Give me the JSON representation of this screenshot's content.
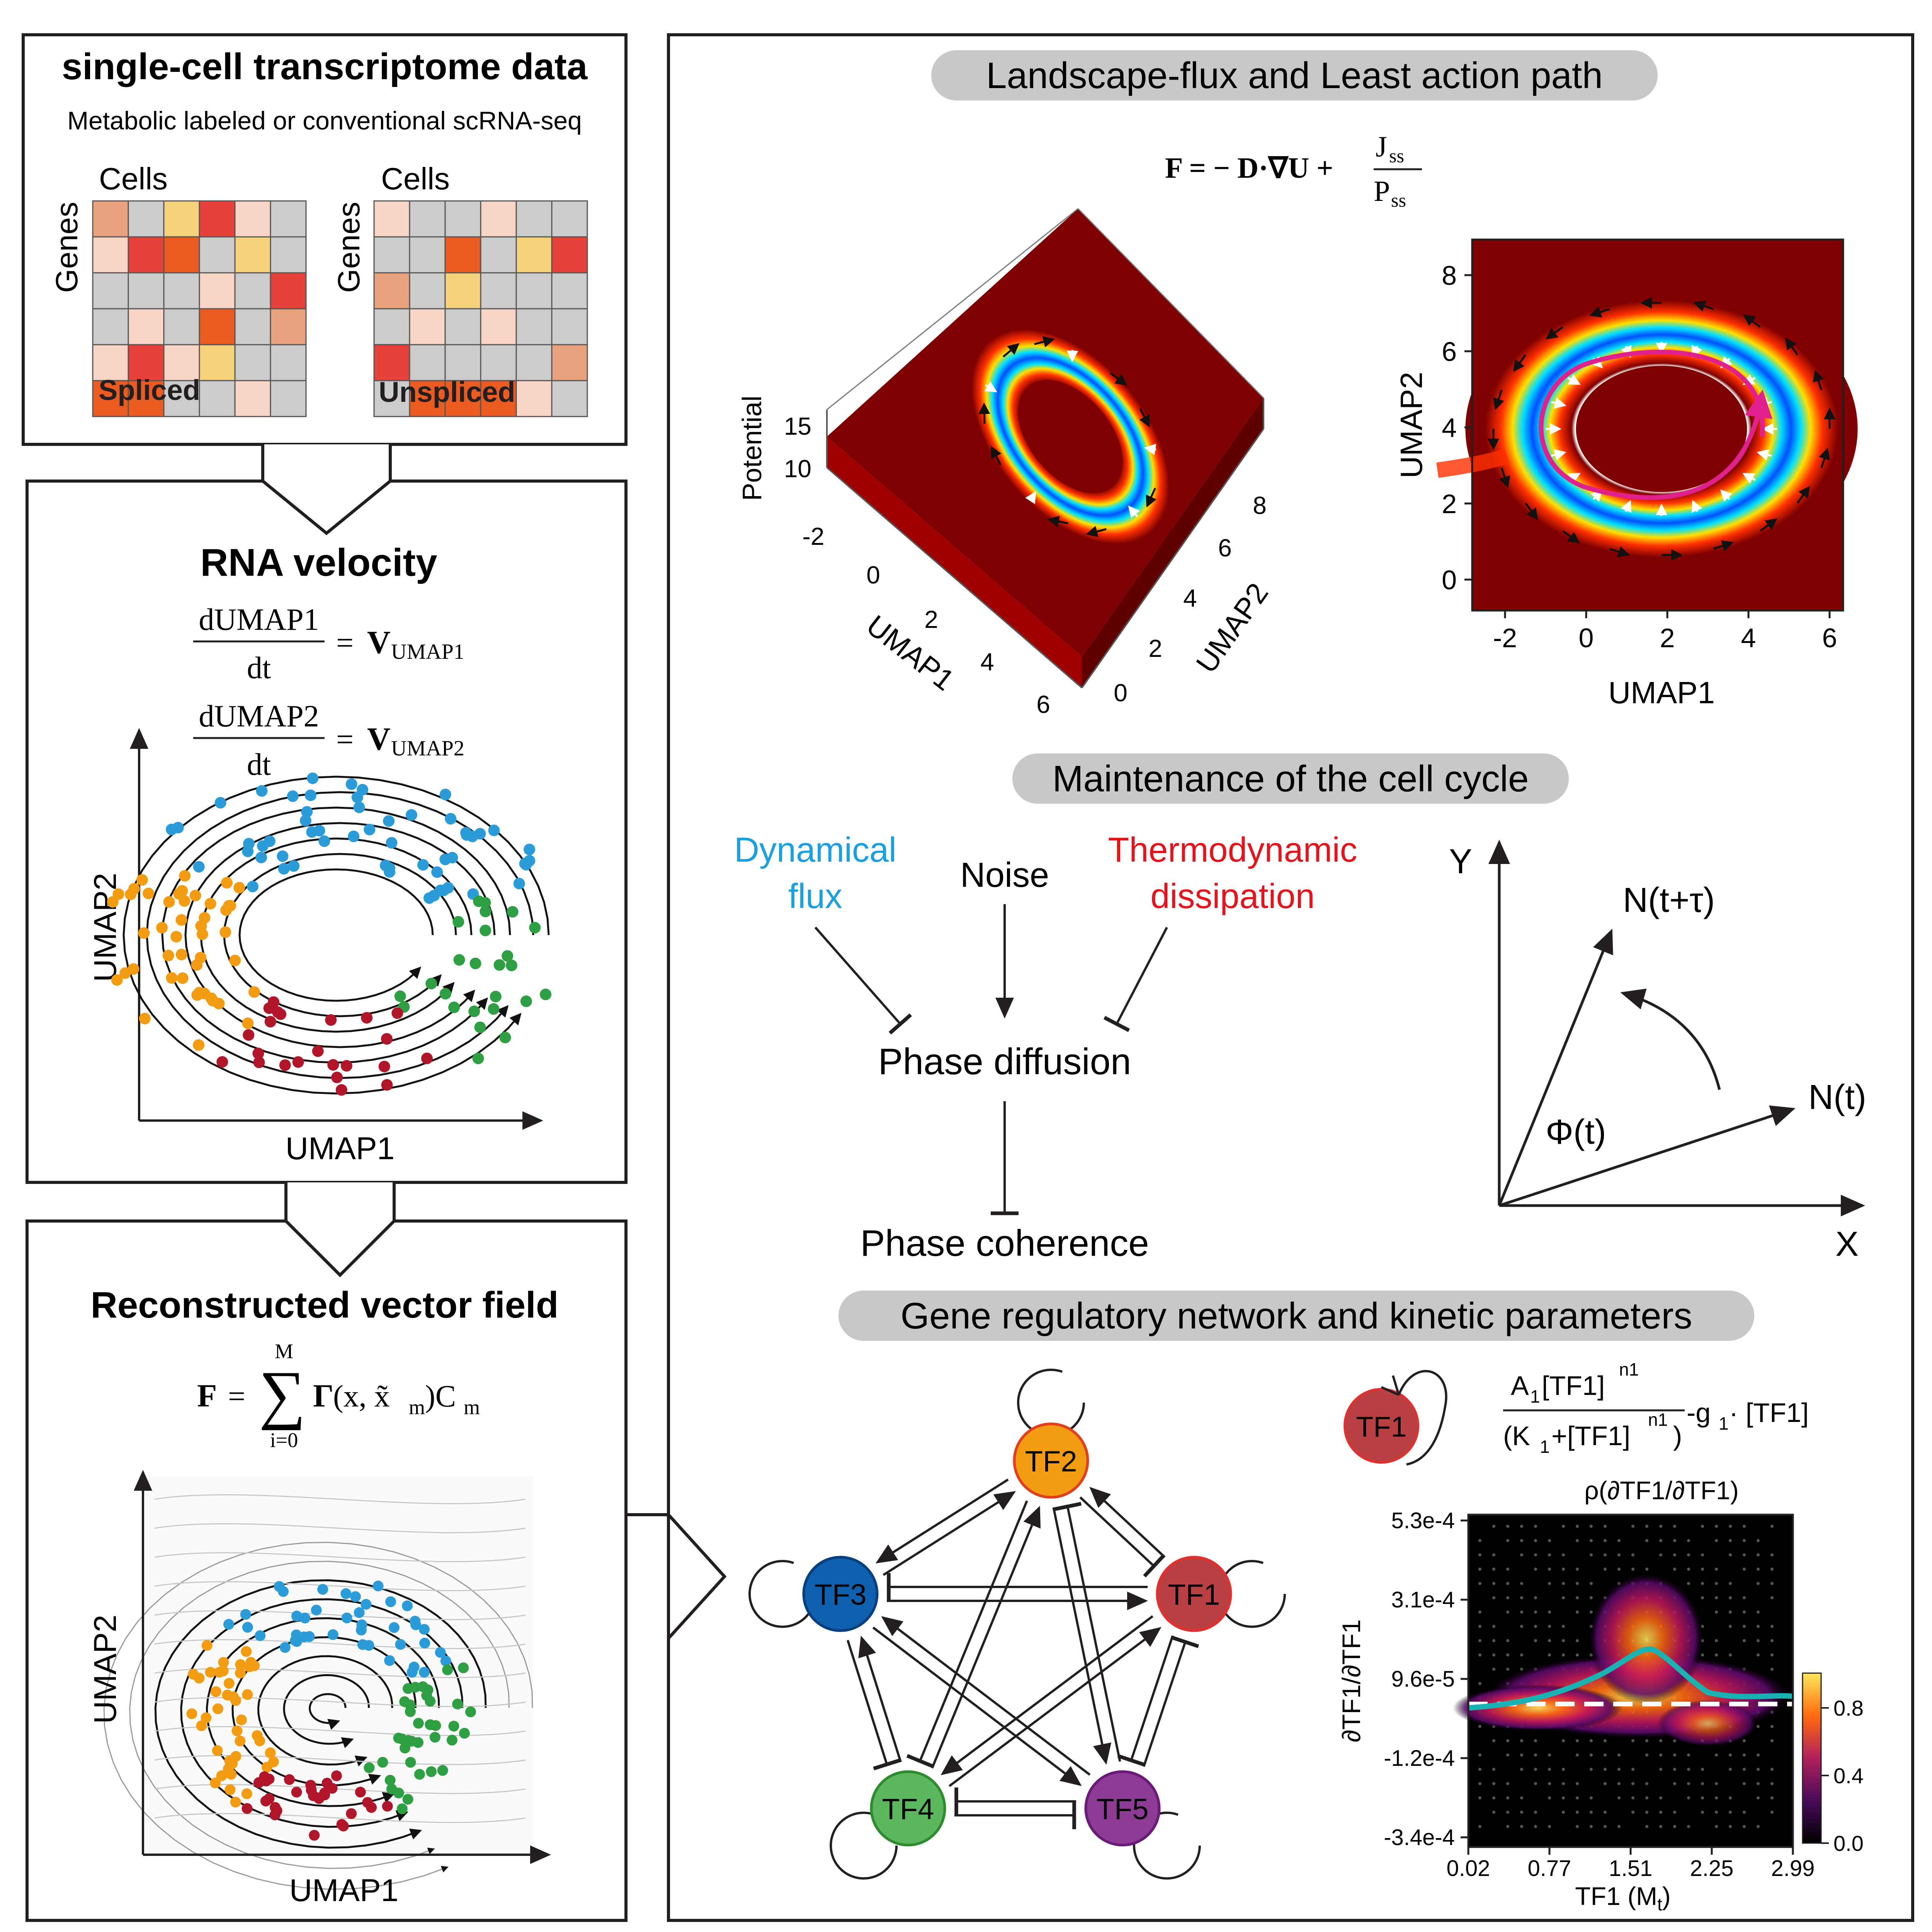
{
  "panel_data": {
    "title": "single-cell transcriptome data",
    "subtitle": "Metabolic labeled or conventional scRNA-seq",
    "axis_cells": "Cells",
    "axis_genes": "Genes",
    "spliced_label": "Spliced",
    "unspliced_label": "Unspliced",
    "spliced_grid": [
      [
        "#eaa17e",
        "#cccccc",
        "#f5d27a",
        "#e8413a",
        "#f9d5c5",
        "#cccccc"
      ],
      [
        "#f9d5c5",
        "#e8413a",
        "#ea5b22",
        "#cccccc",
        "#f5d27a",
        "#cccccc"
      ],
      [
        "#cccccc",
        "#cccccc",
        "#cccccc",
        "#f9d5c5",
        "#cccccc",
        "#e8413a"
      ],
      [
        "#cccccc",
        "#f9d5c5",
        "#cccccc",
        "#ea5b22",
        "#cccccc",
        "#eaa17e"
      ],
      [
        "#f9d5c5",
        "#e8413a",
        "#f9d5c5",
        "#f5d27a",
        "#cccccc",
        "#cccccc"
      ],
      [
        "#ea5b22",
        "#ea5b22",
        "#cccccc",
        "#cccccc",
        "#f9d5c5",
        "#cccccc"
      ]
    ],
    "unspliced_grid": [
      [
        "#f9d5c5",
        "#cccccc",
        "#cccccc",
        "#f9d5c5",
        "#cccccc",
        "#cccccc"
      ],
      [
        "#cccccc",
        "#cccccc",
        "#ea5b22",
        "#cccccc",
        "#f5d27a",
        "#e8413a"
      ],
      [
        "#eaa17e",
        "#cccccc",
        "#f5d27a",
        "#cccccc",
        "#cccccc",
        "#cccccc"
      ],
      [
        "#cccccc",
        "#f9d5c5",
        "#cccccc",
        "#f9d5c5",
        "#cccccc",
        "#cccccc"
      ],
      [
        "#e8413a",
        "#cccccc",
        "#cccccc",
        "#cccccc",
        "#cccccc",
        "#eaa17e"
      ],
      [
        "#cccccc",
        "#ea5b22",
        "#ea5b22",
        "#ea5b22",
        "#f9d5c5",
        "#cccccc"
      ]
    ]
  },
  "panel_velocity": {
    "title": "RNA velocity",
    "eq1_num": "dUMAP1",
    "eq1_den": "dt",
    "eq1_rhs": "V",
    "eq1_sub": "UMAP1",
    "eq2_num": "dUMAP2",
    "eq2_den": "dt",
    "eq2_rhs": "V",
    "eq2_sub": "UMAP2",
    "xlabel": "UMAP1",
    "ylabel": "UMAP2"
  },
  "panel_field": {
    "title": "Reconstructed vector field",
    "eq_lhs": "F",
    "eq_sum_top": "M",
    "eq_sum_bottom": "i=0",
    "eq_gamma": "Γ",
    "eq_args": "(x, x̃",
    "eq_args_sub": "m",
    "eq_args_close": ")C",
    "eq_c_sub": "m",
    "xlabel": "UMAP1",
    "ylabel": "UMAP2"
  },
  "landscape": {
    "title": "Landscape-flux and Least action path",
    "eq_lhs": "F = − D·∇U +",
    "eq_num": "J",
    "eq_num_sub": "ss",
    "eq_den": "P",
    "eq_den_sub": "ss",
    "surface_zlabel": "Potential",
    "surface_zticks": [
      "15",
      "10"
    ],
    "surface_xlabel": "UMAP1",
    "surface_xticks": [
      "-2",
      "0",
      "2",
      "4",
      "6"
    ],
    "surface_ylabel": "UMAP2",
    "surface_yticks": [
      "0",
      "2",
      "4",
      "6",
      "8"
    ],
    "map_xlabel": "UMAP1",
    "map_ylabel": "UMAP2",
    "map_xticks": [
      "-2",
      "0",
      "2",
      "4",
      "6"
    ],
    "map_yticks": [
      "0",
      "2",
      "4",
      "6",
      "8"
    ]
  },
  "maintenance": {
    "title": "Maintenance of the cell cycle",
    "dyn1": "Dynamical",
    "dyn2": "flux",
    "noise": "Noise",
    "thermo1": "Thermodynamic",
    "thermo2": "dissipation",
    "diffusion": "Phase diffusion",
    "coherence": "Phase coherence",
    "dyn_color": "#1a9fe0",
    "thermo_color": "#e3141b",
    "phase_y": "Y",
    "phase_x": "X",
    "phase_nt": "N(t)",
    "phase_ntau": "N(t+τ)",
    "phase_phi": "Φ(t)"
  },
  "grn": {
    "title": "Gene regulatory network and kinetic parameters",
    "nodes": [
      {
        "label": "TF1",
        "color": "#b94143",
        "stroke": "#e03030"
      },
      {
        "label": "TF2",
        "color": "#f39c12",
        "stroke": "#e04020"
      },
      {
        "label": "TF3",
        "color": "#1060b0",
        "stroke": "#0a3f80"
      },
      {
        "label": "TF4",
        "color": "#5cb85c",
        "stroke": "#2e8b2e"
      },
      {
        "label": "TF5",
        "color": "#8e3b96",
        "stroke": "#6a1b78"
      }
    ],
    "legend_node": "TF1",
    "formula_num": "A",
    "formula_num_sub": "1",
    "formula_num_rest": "[TF1]",
    "formula_num_sup": "n1",
    "formula_den": "(K",
    "formula_den_sub": "1",
    "formula_den_mid": "+[TF1]",
    "formula_den_sup": "n1",
    "formula_den_close": ")",
    "formula_tail": "-g",
    "formula_tail_sub": "1",
    "formula_tail_rest": " · [TF1]"
  },
  "heatmap": {
    "title": "ρ(∂TF1/∂TF1)",
    "ylabel": "∂TF1/∂TF1",
    "xlabel": "TF1 (M",
    "xlabel_sub": "t",
    "xlabel_close": ")",
    "xticks": [
      "0.02",
      "0.77",
      "1.51",
      "2.25",
      "2.99"
    ],
    "yticks": [
      "5.3e-4",
      "3.1e-4",
      "9.6e-5",
      "-1.2e-4",
      "-3.4e-4"
    ],
    "colorbar_ticks": [
      "0.8",
      "0.4",
      "0.0"
    ],
    "curve_color": "#1ab3b3"
  },
  "colors": {
    "orange": "#f39c12",
    "blue": "#2b9cd8",
    "green": "#2ea043",
    "red": "#b0152a",
    "pink": "#e0208c"
  }
}
